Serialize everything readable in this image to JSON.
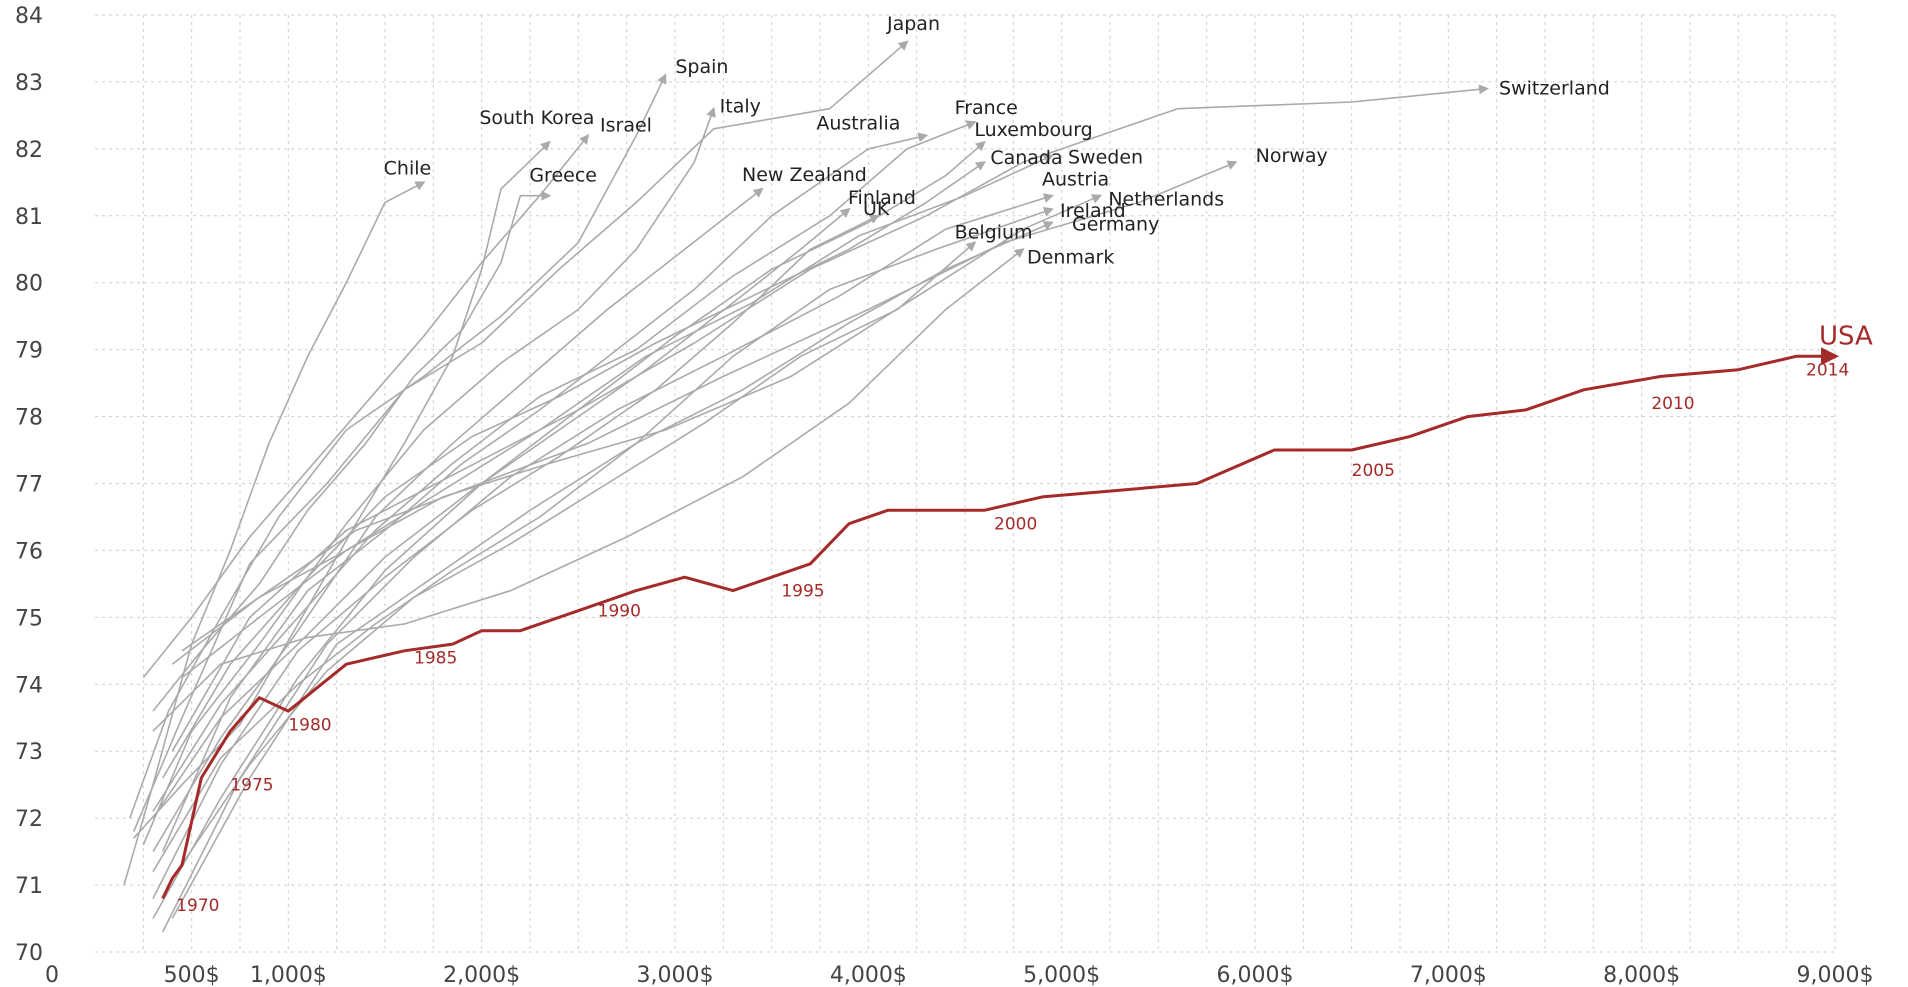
{
  "chart_data": {
    "type": "line",
    "title": "",
    "xlabel": "",
    "ylabel": "",
    "xlim": [
      0,
      9000
    ],
    "ylim": [
      70,
      84
    ],
    "x_ticks": [
      0,
      500,
      1000,
      2000,
      3000,
      4000,
      5000,
      6000,
      7000,
      8000,
      9000
    ],
    "x_tick_labels": [
      "0",
      "500$",
      "1,000$",
      "2,000$",
      "3,000$",
      "4,000$",
      "5,000$",
      "6,000$",
      "7,000$",
      "8,000$",
      "9,000$"
    ],
    "y_ticks": [
      70,
      71,
      72,
      73,
      74,
      75,
      76,
      77,
      78,
      79,
      80,
      81,
      82,
      83,
      84
    ],
    "y_tick_labels": [
      "70",
      "71",
      "72",
      "73",
      "74",
      "75",
      "76",
      "77",
      "78",
      "79",
      "80",
      "81",
      "82",
      "83",
      "84"
    ],
    "grid": true,
    "colors": {
      "countries": "#aaaaaa",
      "usa": "#a52a2a",
      "grid": "#cfcfcf"
    },
    "series": [
      {
        "name": "Japan",
        "x": [
          200,
          450,
          800,
          1200,
          1600,
          2000,
          2400,
          2800,
          3200,
          3800,
          4200
        ],
        "y": [
          71.8,
          73.5,
          75.8,
          77.0,
          78.4,
          79.1,
          80.2,
          81.2,
          82.3,
          82.6,
          83.6
        ]
      },
      {
        "name": "Spain",
        "x": [
          180,
          380,
          650,
          950,
          1300,
          1700,
          2100,
          2500,
          2800,
          2950
        ],
        "y": [
          72.0,
          73.6,
          75.0,
          76.5,
          77.8,
          78.6,
          79.5,
          80.6,
          82.2,
          83.1
        ]
      },
      {
        "name": "Italy",
        "x": [
          250,
          500,
          850,
          1300,
          1700,
          2100,
          2500,
          2800,
          3100,
          3200
        ],
        "y": [
          71.6,
          73.3,
          74.6,
          76.4,
          77.8,
          78.8,
          79.6,
          80.5,
          81.8,
          82.6
        ]
      },
      {
        "name": "Switzerland",
        "x": [
          400,
          800,
          1300,
          1900,
          2500,
          3100,
          3700,
          4300,
          4800,
          5600,
          6500,
          7200
        ],
        "y": [
          73.0,
          75.0,
          76.3,
          77.2,
          78.1,
          79.1,
          80.2,
          81.0,
          81.8,
          82.6,
          82.7,
          82.9
        ]
      },
      {
        "name": "South Korea",
        "x": [
          200,
          450,
          750,
          1050,
          1350,
          1600,
          1850,
          2000,
          2100,
          2350
        ],
        "y": [
          71.7,
          72.5,
          73.4,
          74.9,
          76.4,
          77.6,
          78.9,
          80.2,
          81.4,
          82.1
        ]
      },
      {
        "name": "Israel",
        "x": [
          250,
          500,
          800,
          1100,
          1400,
          1700,
          2000,
          2300,
          2550
        ],
        "y": [
          74.1,
          75.0,
          76.2,
          77.2,
          78.2,
          79.2,
          80.3,
          81.3,
          82.2
        ]
      },
      {
        "name": "Chile",
        "x": [
          150,
          300,
          500,
          700,
          900,
          1100,
          1300,
          1500,
          1700
        ],
        "y": [
          71.0,
          72.5,
          74.6,
          76.0,
          77.6,
          78.9,
          80.0,
          81.2,
          81.5
        ]
      },
      {
        "name": "Greece",
        "x": [
          300,
          550,
          850,
          1100,
          1400,
          1650,
          1900,
          2100,
          2200,
          2350
        ],
        "y": [
          73.6,
          74.5,
          75.5,
          76.6,
          77.6,
          78.6,
          79.3,
          80.3,
          81.3,
          81.3
        ]
      },
      {
        "name": "Australia",
        "x": [
          350,
          700,
          1100,
          1500,
          1900,
          2300,
          2700,
          3100,
          3500,
          4000,
          4300
        ],
        "y": [
          71.5,
          73.8,
          75.4,
          76.3,
          77.3,
          78.1,
          79.0,
          79.9,
          81.0,
          82.0,
          82.2
        ]
      },
      {
        "name": "France",
        "x": [
          300,
          650,
          1050,
          1450,
          1850,
          2300,
          2800,
          3300,
          3800,
          4200,
          4550
        ],
        "y": [
          72.1,
          73.7,
          75.0,
          76.3,
          77.3,
          78.3,
          79.0,
          80.1,
          81.0,
          82.0,
          82.4
        ]
      },
      {
        "name": "Luxembourg",
        "x": [
          300,
          650,
          1050,
          1500,
          2000,
          2500,
          3000,
          3500,
          4000,
          4400,
          4600
        ],
        "y": [
          70.5,
          72.3,
          74.1,
          75.7,
          77.0,
          78.1,
          79.2,
          80.2,
          80.9,
          81.6,
          82.1
        ]
      },
      {
        "name": "Canada",
        "x": [
          350,
          700,
          1100,
          1500,
          1950,
          2400,
          2900,
          3400,
          3900,
          4300,
          4600
        ],
        "y": [
          72.6,
          74.3,
          75.6,
          76.8,
          77.7,
          78.3,
          79.1,
          79.8,
          80.5,
          81.2,
          81.8
        ]
      },
      {
        "name": "Sweden",
        "x": [
          450,
          850,
          1300,
          1800,
          2300,
          2850,
          3400,
          3950,
          4500,
          4950
        ],
        "y": [
          74.5,
          75.3,
          76.0,
          76.9,
          77.8,
          78.9,
          79.7,
          80.7,
          81.3,
          81.9
        ]
      },
      {
        "name": "New Zealand",
        "x": [
          300,
          650,
          1050,
          1450,
          1850,
          2250,
          2650,
          3050,
          3450
        ],
        "y": [
          71.5,
          73.2,
          74.8,
          76.5,
          77.6,
          78.6,
          79.6,
          80.5,
          81.4
        ]
      },
      {
        "name": "Finland",
        "x": [
          300,
          650,
          1050,
          1500,
          1950,
          2400,
          2900,
          3300,
          3700,
          4050
        ],
        "y": [
          70.8,
          72.8,
          74.5,
          75.6,
          76.6,
          77.4,
          78.4,
          79.4,
          80.5,
          81.0
        ]
      },
      {
        "name": "UK",
        "x": [
          300,
          650,
          1050,
          1500,
          1950,
          2400,
          2850,
          3300,
          3650,
          3900
        ],
        "y": [
          72.0,
          73.5,
          74.6,
          75.9,
          76.9,
          77.8,
          78.7,
          79.7,
          80.5,
          81.1
        ]
      },
      {
        "name": "Austria",
        "x": [
          350,
          750,
          1200,
          1650,
          2150,
          2700,
          3250,
          3850,
          4400,
          4950
        ],
        "y": [
          70.3,
          72.6,
          74.6,
          75.9,
          77.1,
          78.1,
          78.9,
          79.8,
          80.8,
          81.3
        ]
      },
      {
        "name": "Netherlands",
        "x": [
          450,
          850,
          1300,
          1800,
          2350,
          2950,
          3600,
          4200,
          4800,
          5200
        ],
        "y": [
          74.1,
          75.0,
          76.0,
          76.8,
          77.3,
          77.8,
          78.6,
          79.7,
          80.8,
          81.3
        ]
      },
      {
        "name": "Norway",
        "x": [
          400,
          850,
          1350,
          1900,
          2550,
          3250,
          4000,
          4700,
          5400,
          5900
        ],
        "y": [
          74.3,
          75.3,
          76.3,
          76.9,
          77.6,
          78.6,
          79.6,
          80.6,
          81.2,
          81.8
        ]
      },
      {
        "name": "Ireland",
        "x": [
          300,
          650,
          1050,
          1450,
          1850,
          2300,
          2800,
          3300,
          3800,
          4350,
          4950
        ],
        "y": [
          71.2,
          72.9,
          74.0,
          74.9,
          75.7,
          76.5,
          77.6,
          78.9,
          79.9,
          80.5,
          81.1
        ]
      },
      {
        "name": "Germany",
        "x": [
          400,
          800,
          1250,
          1750,
          2250,
          2800,
          3350,
          3900,
          4400,
          4950
        ],
        "y": [
          70.5,
          72.6,
          74.6,
          75.6,
          76.6,
          77.6,
          78.4,
          79.4,
          80.2,
          80.9
        ]
      },
      {
        "name": "Belgium",
        "x": [
          400,
          800,
          1200,
          1650,
          2150,
          2650,
          3150,
          3650,
          4150,
          4550
        ],
        "y": [
          71.1,
          72.8,
          74.2,
          75.3,
          76.1,
          77.0,
          77.9,
          78.9,
          79.6,
          80.6
        ]
      },
      {
        "name": "Denmark",
        "x": [
          300,
          650,
          1100,
          1600,
          2150,
          2750,
          3350,
          3900,
          4400,
          4800
        ],
        "y": [
          73.3,
          74.3,
          74.7,
          74.9,
          75.4,
          76.2,
          77.1,
          78.2,
          79.6,
          80.5
        ]
      },
      {
        "name": "USA",
        "x": [
          350,
          400,
          450,
          550,
          700,
          850,
          1000,
          1300,
          1600,
          1850,
          2000,
          2200,
          2500,
          2800,
          3050,
          3300,
          3500,
          3700,
          3900,
          4100,
          4300,
          4600,
          4900,
          5300,
          5700,
          6100,
          6500,
          6800,
          7100,
          7400,
          7700,
          8100,
          8500,
          8800,
          9000
        ],
        "y": [
          70.8,
          71.1,
          71.3,
          72.6,
          73.3,
          73.8,
          73.6,
          74.3,
          74.5,
          74.6,
          74.8,
          74.8,
          75.1,
          75.4,
          75.6,
          75.4,
          75.6,
          75.8,
          76.4,
          76.6,
          76.6,
          76.6,
          76.8,
          76.9,
          77.0,
          77.5,
          77.5,
          77.7,
          78.0,
          78.1,
          78.4,
          78.6,
          78.7,
          78.9,
          78.9
        ]
      }
    ],
    "annotations": [
      {
        "text": "1970",
        "x": 420,
        "y": 70.7
      },
      {
        "text": "1975",
        "x": 700,
        "y": 72.5
      },
      {
        "text": "1980",
        "x": 1000,
        "y": 73.4
      },
      {
        "text": "1985",
        "x": 1650,
        "y": 74.4
      },
      {
        "text": "1990",
        "x": 2600,
        "y": 75.1
      },
      {
        "text": "1995",
        "x": 3550,
        "y": 75.4
      },
      {
        "text": "2000",
        "x": 4650,
        "y": 76.4
      },
      {
        "text": "2005",
        "x": 6500,
        "y": 77.2
      },
      {
        "text": "2010",
        "x": 8050,
        "y": 78.2
      },
      {
        "text": "2014",
        "x": 8850,
        "y": 78.7
      }
    ]
  }
}
